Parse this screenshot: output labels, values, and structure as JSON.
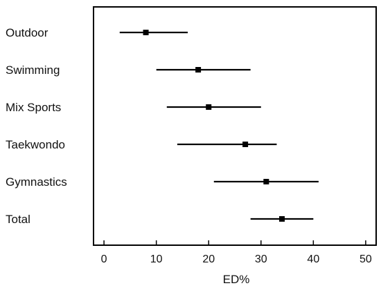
{
  "chart_data": {
    "type": "forest",
    "title": "",
    "xlabel": "ED%",
    "ylabel": "",
    "xlim": [
      -2,
      52
    ],
    "xticks": [
      0,
      10,
      20,
      30,
      40,
      50
    ],
    "grid": false,
    "categories": [
      "Outdoor",
      "Swimming",
      "Mix Sports",
      "Taekwondo",
      "Gymnastics",
      "Total"
    ],
    "estimates": [
      8,
      18,
      20,
      27,
      31,
      34
    ],
    "ci_lower": [
      3,
      10,
      12,
      14,
      21,
      28
    ],
    "ci_upper": [
      16,
      28,
      30,
      33,
      41,
      40
    ]
  },
  "colors": {
    "marks": "#000000",
    "frame": "#000000"
  }
}
